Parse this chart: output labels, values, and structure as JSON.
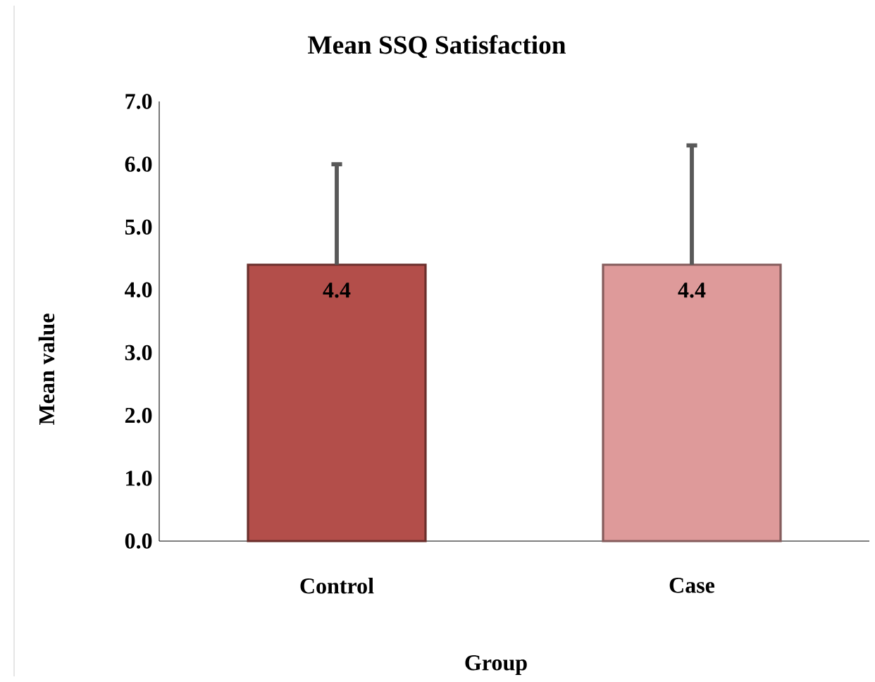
{
  "chart_data": {
    "type": "bar",
    "title": "Mean SSQ Satisfaction",
    "xlabel": "Group",
    "ylabel": "Mean value",
    "categories": [
      "Control",
      "Case"
    ],
    "values": [
      4.4,
      4.4
    ],
    "colors": [
      "#b34e4a",
      "#de9a9a"
    ],
    "errors": [
      [
        4.4,
        6.0
      ],
      [
        4.4,
        6.3
      ]
    ],
    "data_labels": true,
    "ylim": [
      0,
      7
    ],
    "yticks": [
      {
        "value": 0,
        "label": "0.0"
      },
      {
        "value": 1,
        "label": "1.0"
      },
      {
        "value": 2,
        "label": "2.0"
      },
      {
        "value": 3,
        "label": "3.0"
      },
      {
        "value": 4,
        "label": "4.0"
      },
      {
        "value": 5,
        "label": "5.0"
      },
      {
        "value": 6,
        "label": "6.0"
      },
      {
        "value": 7,
        "label": "7.0"
      }
    ],
    "grid": false
  }
}
